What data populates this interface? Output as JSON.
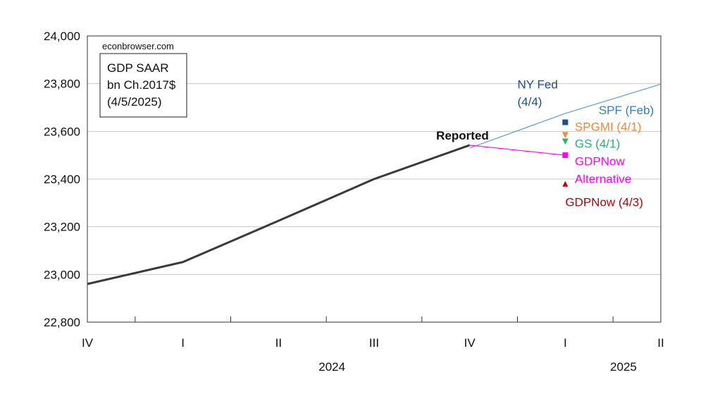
{
  "chart_data": {
    "type": "line",
    "source_note": "econbrowser.com",
    "box_lines": [
      "GDP SAAR",
      "bn Ch.2017$",
      "(4/5/2025)"
    ],
    "ylim": [
      22800,
      24000
    ],
    "y_ticks": [
      22800,
      23000,
      23200,
      23400,
      23600,
      23800,
      24000
    ],
    "y_tick_labels": [
      "22,800",
      "23,000",
      "23,200",
      "23,400",
      "23,600",
      "23,800",
      "24,000"
    ],
    "x_ticks": [
      "IV",
      "I",
      "II",
      "III",
      "IV",
      "I",
      "II"
    ],
    "x_tick_positions": [
      0,
      1,
      2,
      3,
      4,
      5,
      6
    ],
    "years": [
      {
        "label": "2024",
        "x": 2.5
      },
      {
        "label": "2025",
        "x": 5.55
      }
    ],
    "series": [
      {
        "name": "Reported",
        "color": "#3a3a3a",
        "x": [
          0,
          1,
          2,
          3,
          4
        ],
        "y": [
          22960,
          23052,
          23225,
          23400,
          23542
        ]
      },
      {
        "name": "SPF (Feb)",
        "color": "#5aa0d8",
        "x": [
          4,
          5,
          6
        ],
        "y": [
          23530,
          23675,
          23798
        ]
      },
      {
        "name": "GDPNow Alternative",
        "color": "#ff00ff",
        "x": [
          4,
          5
        ],
        "y": [
          23542,
          23500
        ]
      }
    ],
    "points": [
      {
        "name": "NY Fed (4/4)",
        "x": 5,
        "y": 23638,
        "marker": "square",
        "color": "#1f4e8c"
      },
      {
        "name": "SPGMI (4/1)",
        "x": 5,
        "y": 23585,
        "marker": "triangle-down",
        "color": "#f08a3c"
      },
      {
        "name": "GS (4/1)",
        "x": 5,
        "y": 23558,
        "marker": "triangle-down",
        "color": "#22b573"
      },
      {
        "name": "GDPNow Alternative",
        "x": 5,
        "y": 23500,
        "marker": "square",
        "color": "#ff00ff"
      },
      {
        "name": "GDPNow (4/3)",
        "x": 5,
        "y": 23380,
        "marker": "triangle-up",
        "color": "#c00000"
      }
    ],
    "annotations": [
      {
        "text": "Reported",
        "color": "#111111",
        "bold": true,
        "x": 3.65,
        "y": 23565
      },
      {
        "text": "NY Fed",
        "color": "#1f4e8c",
        "x": 4.5,
        "y": 23780
      },
      {
        "text": "(4/4)",
        "color": "#1f4e8c",
        "x": 4.5,
        "y": 23708
      },
      {
        "text": "SPF (Feb)",
        "color": "#2f7fc2",
        "x": 5.35,
        "y": 23672
      },
      {
        "text": "SPGMI (4/1)",
        "color": "#f08a3c",
        "x": 5.1,
        "y": 23603
      },
      {
        "text": "GS (4/1)",
        "color": "#22b573",
        "x": 5.1,
        "y": 23531
      },
      {
        "text": "GDPNow",
        "color": "#ff00ff",
        "x": 5.1,
        "y": 23457
      },
      {
        "text": "Alternative",
        "color": "#ff00ff",
        "x": 5.1,
        "y": 23384
      },
      {
        "text": "GDPNow (4/3)",
        "color": "#c00000",
        "x": 5.0,
        "y": 23286
      }
    ],
    "grid": true
  }
}
